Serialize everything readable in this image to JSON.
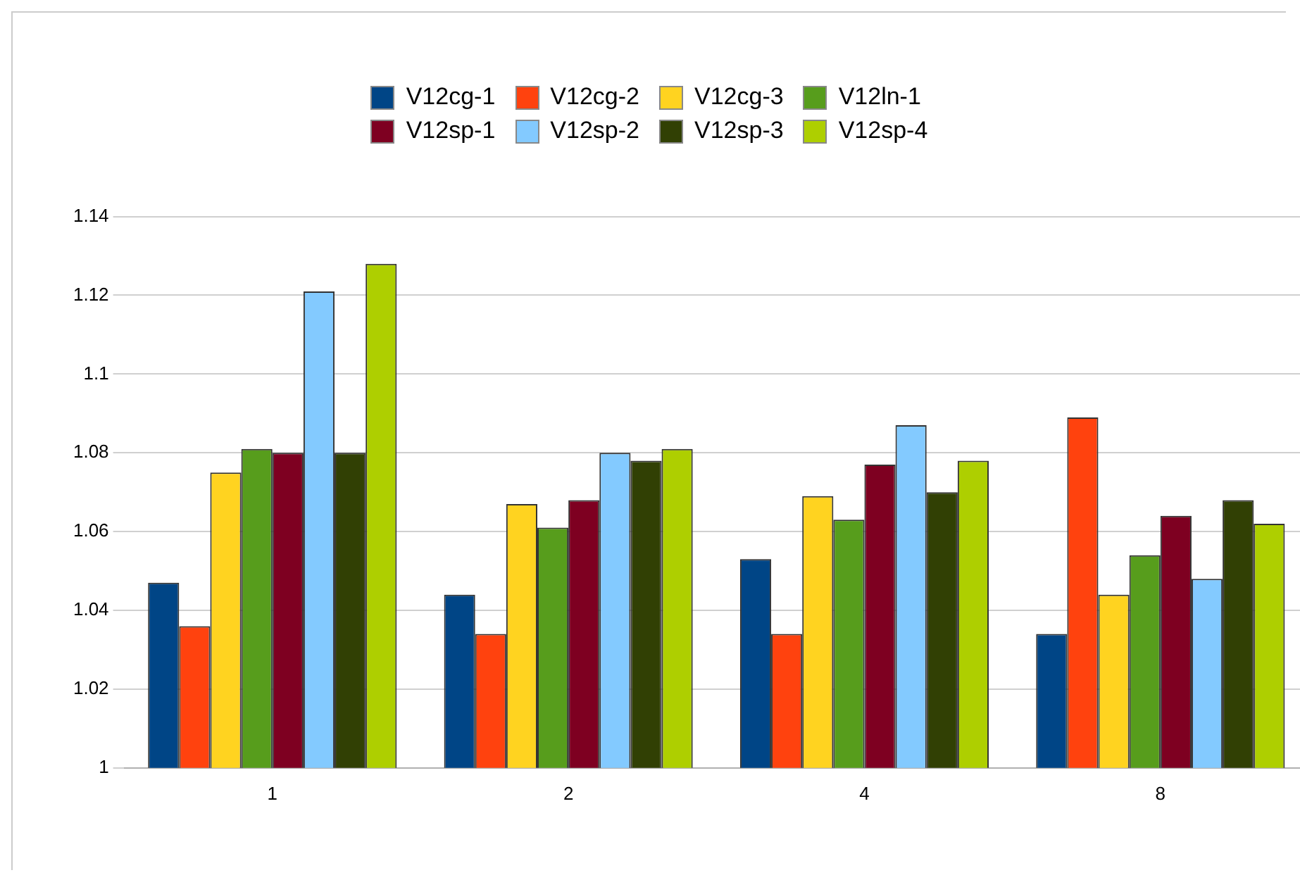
{
  "chart_data": {
    "type": "bar",
    "categories": [
      "1",
      "2",
      "4",
      "8"
    ],
    "series": [
      {
        "name": "V12cg-1",
        "color": "#004586",
        "values": [
          1.047,
          1.044,
          1.053,
          1.034
        ]
      },
      {
        "name": "V12cg-2",
        "color": "#ff420e",
        "values": [
          1.036,
          1.034,
          1.034,
          1.089
        ]
      },
      {
        "name": "V12cg-3",
        "color": "#ffd320",
        "values": [
          1.075,
          1.067,
          1.069,
          1.044
        ]
      },
      {
        "name": "V12ln-1",
        "color": "#579d1c",
        "values": [
          1.081,
          1.061,
          1.063,
          1.054
        ]
      },
      {
        "name": "V12sp-1",
        "color": "#7e0021",
        "values": [
          1.08,
          1.068,
          1.077,
          1.064
        ]
      },
      {
        "name": "V12sp-2",
        "color": "#83caff",
        "values": [
          1.121,
          1.08,
          1.087,
          1.048
        ]
      },
      {
        "name": "V12sp-3",
        "color": "#314004",
        "values": [
          1.08,
          1.078,
          1.07,
          1.068
        ]
      },
      {
        "name": "V12sp-4",
        "color": "#aecf00",
        "values": [
          1.128,
          1.081,
          1.078,
          1.062
        ]
      }
    ],
    "ylim": [
      1,
      1.14
    ],
    "yticks": [
      1,
      1.02,
      1.04,
      1.06,
      1.08,
      1.1,
      1.12,
      1.14
    ],
    "grid": "y",
    "legend": "top"
  }
}
